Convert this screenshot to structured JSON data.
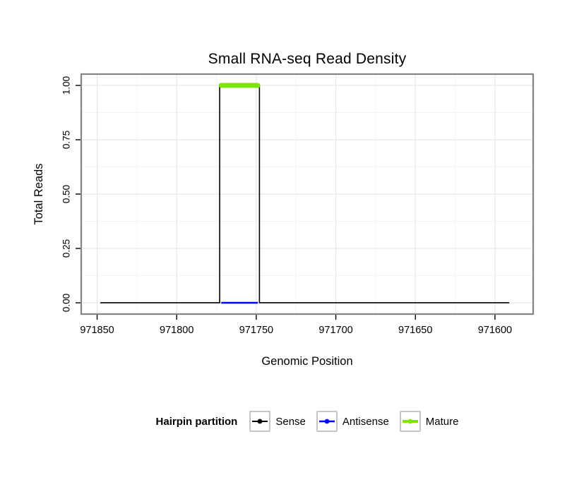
{
  "chart_data": {
    "type": "line",
    "title": "Small RNA-seq Read Density",
    "xlabel": "Genomic Position",
    "ylabel": "Total Reads",
    "grid": true,
    "legend_position": "bottom",
    "x_axis": {
      "reversed": true,
      "domain": [
        971860,
        971576
      ],
      "ticks": [
        971850,
        971800,
        971750,
        971700,
        971650,
        971600
      ],
      "tick_labels": [
        "971850",
        "971800",
        "971750",
        "971700",
        "971650",
        "971600"
      ]
    },
    "y_axis": {
      "domain": [
        -0.052,
        1.052
      ],
      "ticks": [
        0,
        0.25,
        0.5,
        0.75,
        1
      ],
      "tick_labels": [
        "0.00",
        "0.25",
        "0.50",
        "0.75",
        "1.00"
      ]
    },
    "series": [
      {
        "name": "Sense",
        "color": "#000000",
        "lw": 1.6,
        "points": [
          [
            971848,
            0
          ],
          [
            971773,
            0
          ],
          [
            971773,
            1
          ],
          [
            971748,
            1
          ],
          [
            971748,
            0
          ],
          [
            971591,
            0
          ]
        ]
      },
      {
        "name": "Antisense",
        "color": "#0000FF",
        "lw": 2.5,
        "points": [
          [
            971772,
            0
          ],
          [
            971749,
            0
          ]
        ]
      },
      {
        "name": "Mature",
        "color": "#7CE600",
        "lw": 7,
        "points": [
          [
            971772,
            1
          ],
          [
            971749,
            1
          ]
        ]
      }
    ],
    "legend": {
      "title": "Hairpin partition",
      "items": [
        {
          "label": "Sense",
          "color": "#000000",
          "lw": 2
        },
        {
          "label": "Antisense",
          "color": "#0000FF",
          "lw": 2.5
        },
        {
          "label": "Mature",
          "color": "#7CE600",
          "lw": 4
        }
      ]
    }
  }
}
